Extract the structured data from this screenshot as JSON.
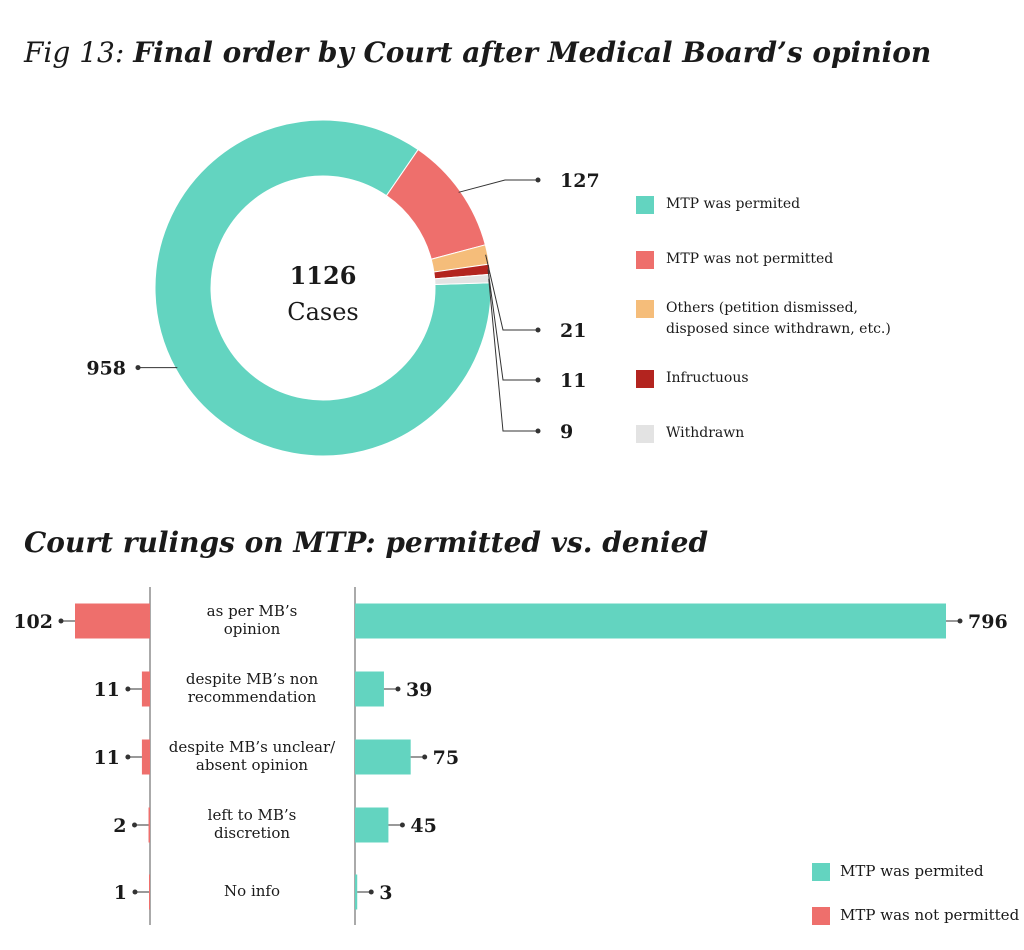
{
  "figure": {
    "title_lead": "Fig 13:",
    "title_main": "Final order by Court after Medical Board’s opinion"
  },
  "chart_data": [
    {
      "type": "pie",
      "variant": "donut",
      "title": "Final order by Court after Medical Board’s opinion",
      "center_value": "1126",
      "center_label": "Cases",
      "total": 1126,
      "slices": [
        {
          "name": "MTP was permited",
          "value": 958,
          "label": "958",
          "color": "#63d4c0"
        },
        {
          "name": "MTP was not permitted",
          "value": 127,
          "label": "127",
          "color": "#ee6f6c"
        },
        {
          "name": "Others (petition dismissed, disposed since withdrawn, etc.)",
          "value": 21,
          "label": "21",
          "color": "#f5bd7a"
        },
        {
          "name": "Infructuous",
          "value": 11,
          "label": "11",
          "color": "#b3241f"
        },
        {
          "name": "Withdrawn",
          "value": 9,
          "label": "9",
          "color": "#e3e3e3"
        }
      ],
      "legend": [
        {
          "label": "MTP was permited",
          "color": "#63d4c0"
        },
        {
          "label": "MTP was not permitted",
          "color": "#ee6f6c"
        },
        {
          "label": "Others (petition dismissed, disposed since withdrawn, etc.)",
          "color": "#f5bd7a"
        },
        {
          "label": "Infructuous",
          "color": "#b3241f"
        },
        {
          "label": "Withdrawn",
          "color": "#e3e3e3"
        }
      ],
      "legend_position": "right"
    },
    {
      "type": "bar",
      "orientation": "horizontal-diverging",
      "title": "Court rulings on MTP: permitted vs. denied",
      "categories": [
        [
          "as per MB’s",
          "opinion"
        ],
        [
          "despite MB’s non",
          "recommendation"
        ],
        [
          "despite MB’s unclear/",
          "absent opinion"
        ],
        [
          "left to MB’s",
          "discretion"
        ],
        [
          "No info"
        ]
      ],
      "series": [
        {
          "name": "MTP was not permitted",
          "values": [
            102,
            11,
            11,
            2,
            1
          ],
          "color": "#ee6f6c",
          "side": "left"
        },
        {
          "name": "MTP was permited",
          "values": [
            796,
            39,
            75,
            45,
            3
          ],
          "color": "#63d4c0",
          "side": "right"
        }
      ],
      "legend": [
        {
          "label": "MTP was permited",
          "color": "#63d4c0"
        },
        {
          "label": "MTP was not permitted",
          "color": "#ee6f6c"
        }
      ],
      "legend_position": "bottom-right"
    }
  ]
}
